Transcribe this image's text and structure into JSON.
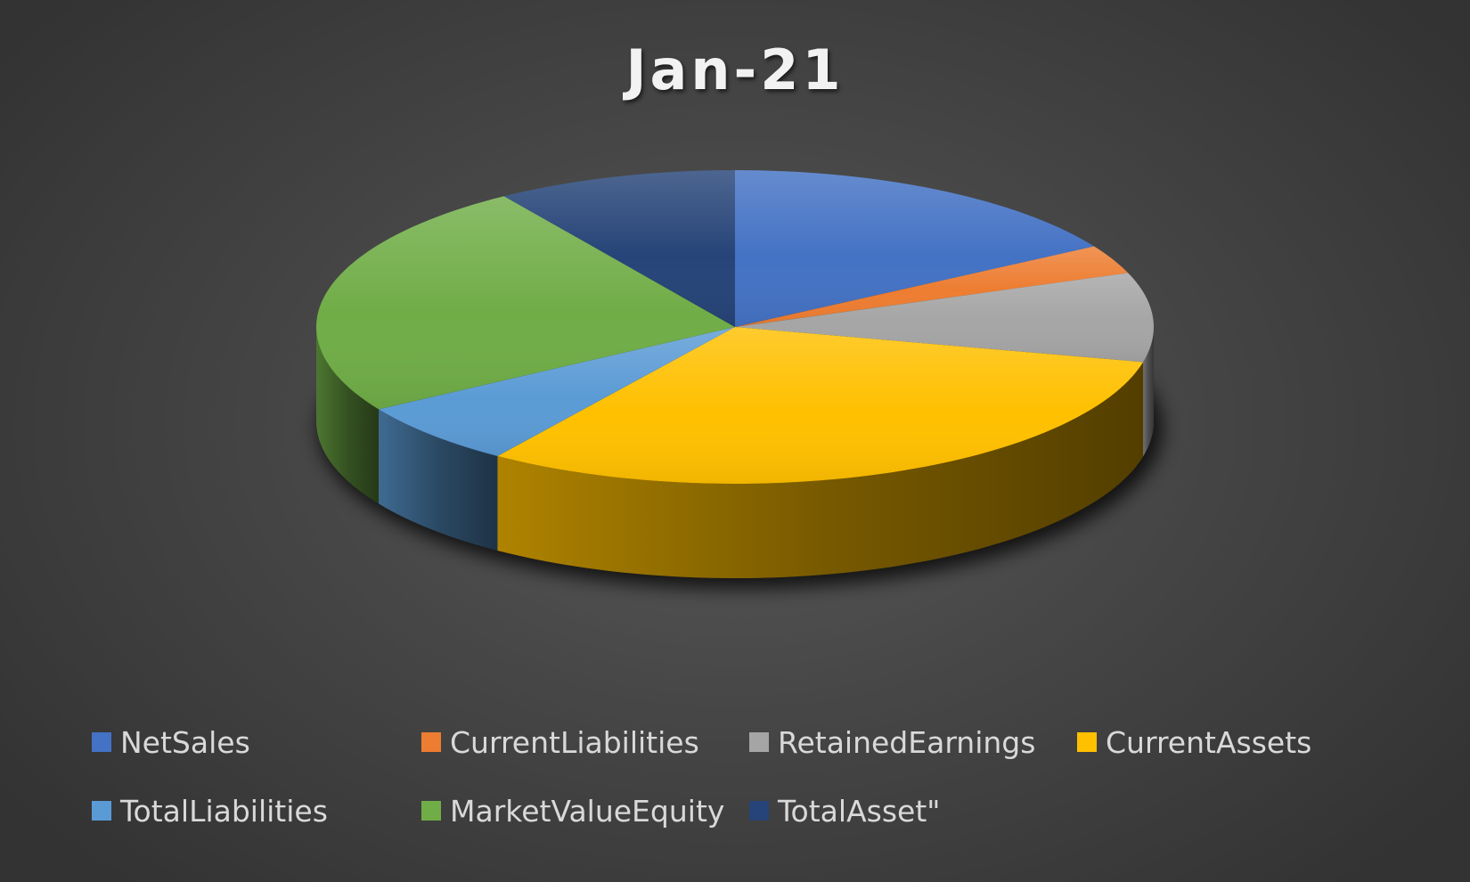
{
  "chart_data": {
    "type": "pie",
    "title": "Jan-21",
    "categories": [
      "NetSales",
      "CurrentLiabilities",
      "RetainedEarnings",
      "CurrentAssets",
      "TotalLiabilities",
      "MarketValueEquity",
      "TotalAsset\""
    ],
    "values": [
      16.4,
      3.0,
      9.2,
      31.0,
      6.6,
      24.5,
      9.3
    ],
    "unit": "percent",
    "colors": [
      "#4472c4",
      "#ed7d31",
      "#a5a5a5",
      "#ffc000",
      "#5b9bd5",
      "#70ad47",
      "#264478"
    ],
    "legend_position": "bottom",
    "style": "3d-pie",
    "start_angle": "12 o'clock",
    "direction": "clockwise"
  },
  "background": "#404040",
  "title_color": "#f2f2f2",
  "legend_text_color": "#d9d9d9"
}
